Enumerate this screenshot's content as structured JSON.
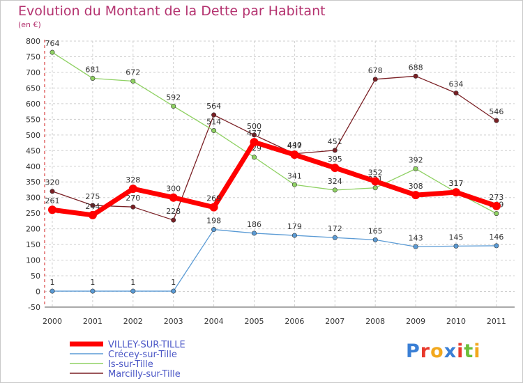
{
  "header": {
    "title": "Evolution du Montant de la Dette par Habitant",
    "subtitle": "(en €)"
  },
  "logo": {
    "text": "Proxiti",
    "colors": [
      "#3a7fd5",
      "#e8392c",
      "#f2a81d",
      "#3a7fd5",
      "#e8392c",
      "#6cbf3a",
      "#f2a81d"
    ]
  },
  "chart_data": {
    "type": "line",
    "title": "Evolution du Montant de la Dette par Habitant",
    "subtitle": "(en €)",
    "x": [
      "2000",
      "2001",
      "2002",
      "2003",
      "2004",
      "2005",
      "2006",
      "2007",
      "2008",
      "2009",
      "2010",
      "2011"
    ],
    "ylim": [
      -50,
      800
    ],
    "yticks": [
      -50,
      0,
      50,
      100,
      150,
      200,
      250,
      300,
      350,
      400,
      450,
      500,
      550,
      600,
      650,
      700,
      750,
      800
    ],
    "grid": true,
    "legend_position": "bottom-left",
    "series": [
      {
        "name": "Marcilly-sur-Tille",
        "color": "#7a1f24",
        "values": [
          320,
          275,
          270,
          228,
          564,
          500,
          440,
          451,
          678,
          688,
          634,
          546
        ],
        "labels": [
          "320",
          "275",
          "270",
          "228",
          "564",
          "500",
          "440",
          "451",
          "678",
          "688",
          "634",
          "546"
        ]
      },
      {
        "name": "Is-sur-Tille",
        "color": "#8fd163",
        "values": [
          764,
          681,
          672,
          592,
          514,
          429,
          341,
          324,
          331,
          392,
          317,
          249
        ],
        "labels": [
          "764",
          "681",
          "672",
          "592",
          "514",
          "429",
          "341",
          "324",
          "331",
          "392",
          "317",
          "249"
        ]
      },
      {
        "name": "Crécey-sur-Tille",
        "color": "#5b9bd5",
        "values": [
          1,
          1,
          1,
          1,
          198,
          186,
          179,
          172,
          165,
          143,
          145,
          146
        ],
        "labels": [
          "1",
          "1",
          "1",
          "1",
          "198",
          "186",
          "179",
          "172",
          "165",
          "143",
          "145",
          "146"
        ]
      },
      {
        "name": "VILLEY-SUR-TILLE",
        "color": "#ff0000",
        "values": [
          261,
          244,
          328,
          300,
          269,
          477,
          437,
          395,
          352,
          308,
          317,
          273
        ],
        "labels": [
          "261",
          "244",
          "328",
          "300",
          "269",
          "477",
          "437",
          "395",
          "352",
          "308",
          "317",
          "273"
        ]
      }
    ],
    "legend_order": [
      "VILLEY-SUR-TILLE",
      "Crécey-sur-Tille",
      "Is-sur-Tille",
      "Marcilly-sur-Tille"
    ]
  }
}
